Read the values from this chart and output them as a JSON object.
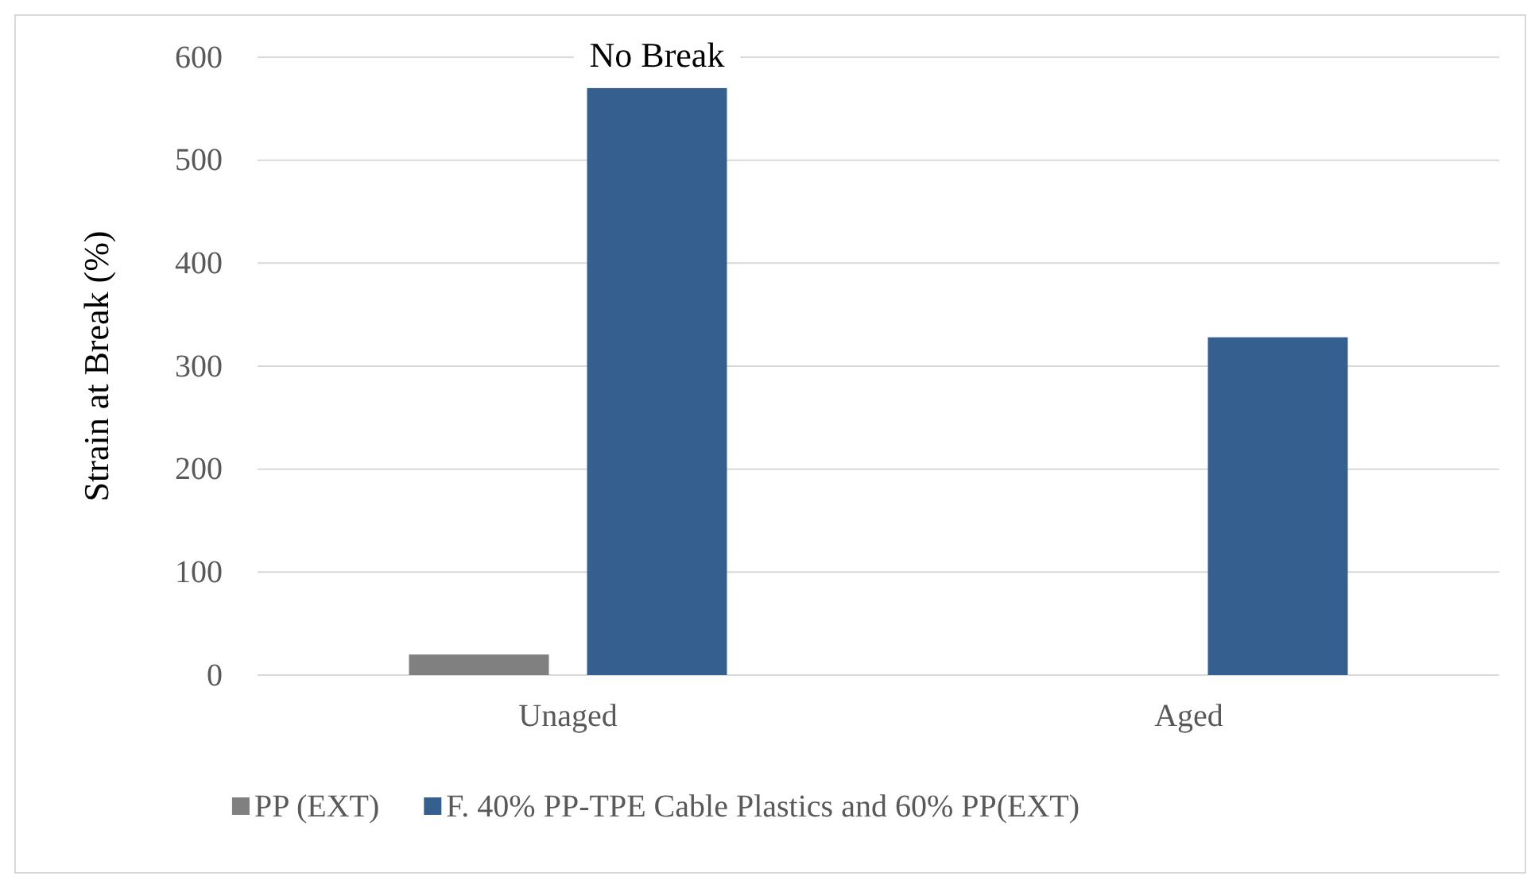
{
  "chart_data": {
    "type": "bar",
    "ylabel": "Strain at Break (%)",
    "categories": [
      "Unaged",
      "Aged"
    ],
    "series": [
      {
        "name": "PP (EXT)",
        "color": "#808080",
        "values": [
          20,
          null
        ]
      },
      {
        "name": "F. 40% PP-TPE Cable Plastics and 60% PP(EXT)",
        "color": "#355f8f",
        "values": [
          570,
          328
        ]
      }
    ],
    "ylim": [
      0,
      600
    ],
    "yticks": [
      0,
      100,
      200,
      300,
      400,
      500,
      600
    ],
    "grid": "y",
    "legend": "bottom",
    "annotations": [
      "No Break"
    ]
  }
}
